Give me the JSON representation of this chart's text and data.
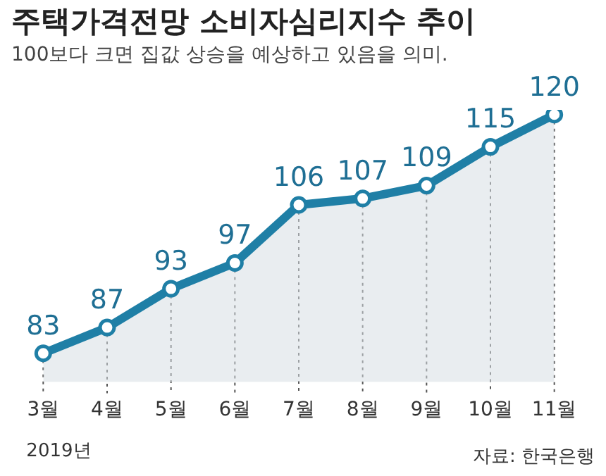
{
  "chart_data": {
    "type": "area",
    "title": "주택가격전망 소비자심리지수 추이",
    "subtitle": "100보다 크면 집값 상승을 예상하고 있음을 의미.",
    "categories": [
      "3월",
      "4월",
      "5월",
      "6월",
      "7월",
      "8월",
      "9월",
      "10월",
      "11월"
    ],
    "series": [
      {
        "color": "#1f7fa6",
        "values": [
          83,
          87,
          93,
          97,
          106,
          107,
          109,
          115,
          120
        ]
      }
    ],
    "data_labels": true,
    "marker": "circle",
    "grid": false,
    "legend": false,
    "annotations": [
      "2019년",
      "자료: 한국은행"
    ]
  }
}
